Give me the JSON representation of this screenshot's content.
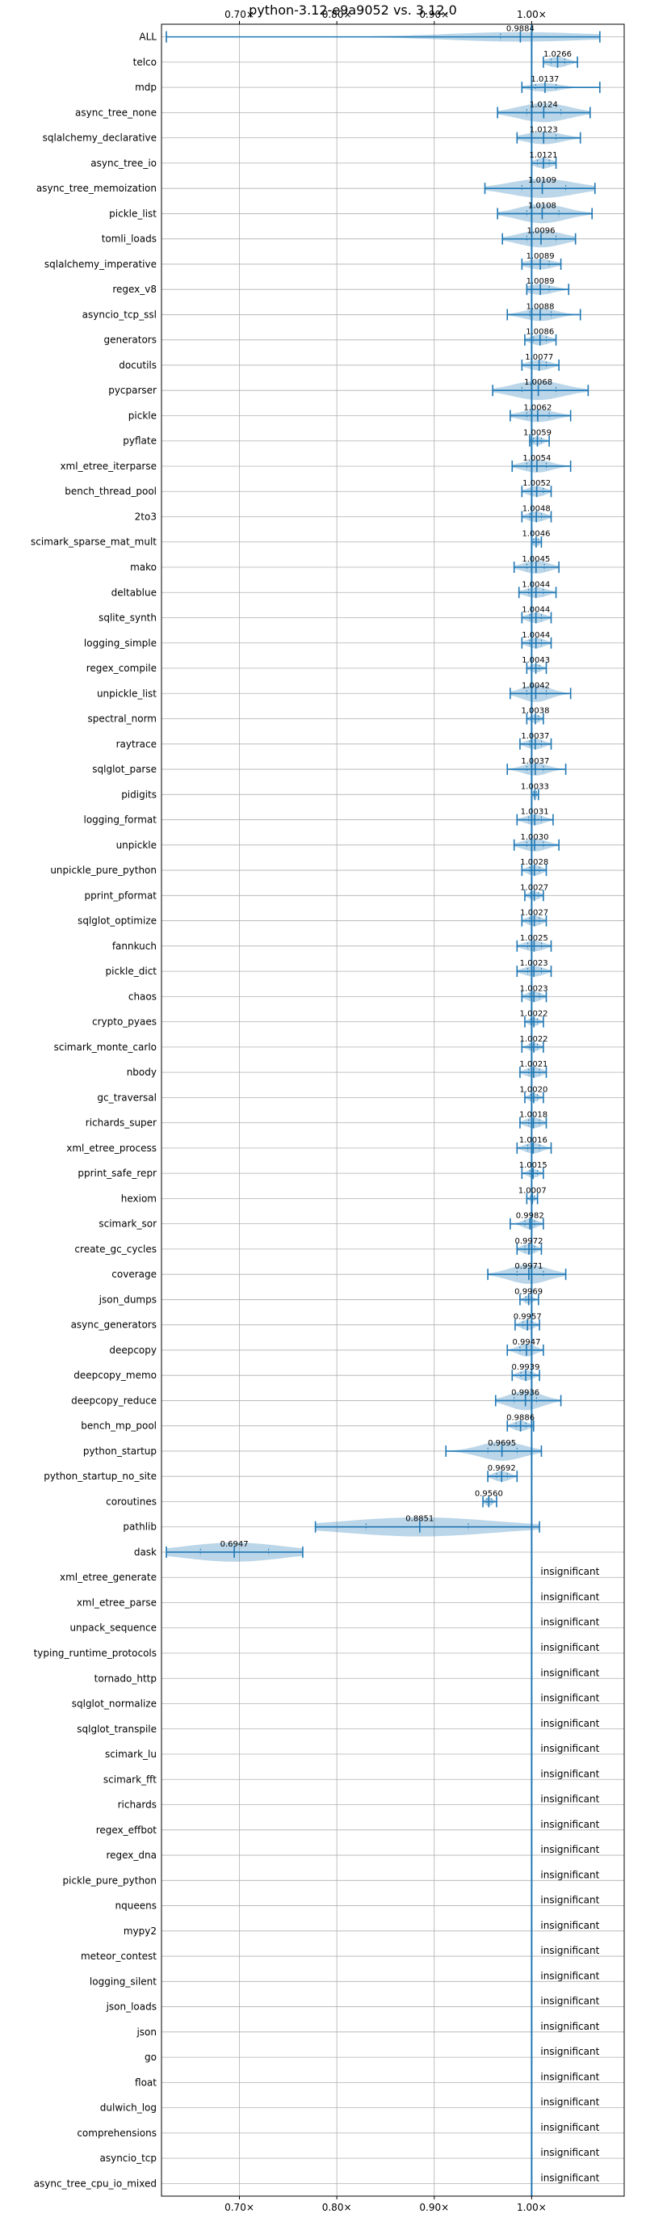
{
  "chart_data": {
    "type": "violin",
    "title": "python-3.12-e9a9052 vs. 3.12.0",
    "xlim": [
      0.62,
      1.095
    ],
    "x_ticks": [
      {
        "value": 0.7,
        "label": "0.70×"
      },
      {
        "value": 0.8,
        "label": "0.80×"
      },
      {
        "value": 0.9,
        "label": "0.90×"
      },
      {
        "value": 1.0,
        "label": "1.00×"
      }
    ],
    "grid": true,
    "reference_line": 1.0,
    "insignificant_label": "insignificant",
    "colors": {
      "line": "#1f77b4",
      "violin": "#1f77b4",
      "grid": "#b0b0b0"
    },
    "rows": [
      {
        "name": "ALL",
        "mean": 0.9884,
        "min": 0.625,
        "max": 1.07,
        "q1": 0.968,
        "q3": 1.0,
        "width": 0.45,
        "label": "0.9884"
      },
      {
        "name": "telco",
        "mean": 1.0266,
        "min": 1.012,
        "max": 1.047,
        "q1": 1.02,
        "q3": 1.034,
        "width": 0.5,
        "label": "1.0266"
      },
      {
        "name": "mdp",
        "mean": 1.0137,
        "min": 0.99,
        "max": 1.07,
        "q1": 1.004,
        "q3": 1.025,
        "width": 0.4,
        "label": "1.0137"
      },
      {
        "name": "async_tree_none",
        "mean": 1.0124,
        "min": 0.965,
        "max": 1.06,
        "q1": 0.995,
        "q3": 1.03,
        "width": 0.9,
        "label": "1.0124"
      },
      {
        "name": "sqlalchemy_declarative",
        "mean": 1.0123,
        "min": 0.985,
        "max": 1.05,
        "q1": 1.0,
        "q3": 1.025,
        "width": 0.6,
        "label": "1.0123"
      },
      {
        "name": "async_tree_io",
        "mean": 1.0121,
        "min": 1.0,
        "max": 1.025,
        "q1": 1.006,
        "q3": 1.018,
        "width": 0.5,
        "label": "1.0121"
      },
      {
        "name": "async_tree_memoization",
        "mean": 1.0109,
        "min": 0.952,
        "max": 1.065,
        "q1": 0.99,
        "q3": 1.035,
        "width": 0.9,
        "label": "1.0109"
      },
      {
        "name": "pickle_list",
        "mean": 1.0108,
        "min": 0.965,
        "max": 1.062,
        "q1": 0.995,
        "q3": 1.028,
        "width": 0.9,
        "label": "1.0108"
      },
      {
        "name": "tomli_loads",
        "mean": 1.0096,
        "min": 0.97,
        "max": 1.045,
        "q1": 0.995,
        "q3": 1.025,
        "width": 0.8,
        "label": "1.0096"
      },
      {
        "name": "sqlalchemy_imperative",
        "mean": 1.0089,
        "min": 0.99,
        "max": 1.03,
        "q1": 1.0,
        "q3": 1.018,
        "width": 0.5,
        "label": "1.0089"
      },
      {
        "name": "regex_v8",
        "mean": 1.0089,
        "min": 0.995,
        "max": 1.038,
        "q1": 1.0,
        "q3": 1.018,
        "width": 0.5,
        "label": "1.0089"
      },
      {
        "name": "asyncio_tcp_ssl",
        "mean": 1.0088,
        "min": 0.975,
        "max": 1.05,
        "q1": 0.998,
        "q3": 1.02,
        "width": 0.6,
        "label": "1.0088"
      },
      {
        "name": "generators",
        "mean": 1.0086,
        "min": 0.993,
        "max": 1.025,
        "q1": 1.002,
        "q3": 1.015,
        "width": 0.5,
        "label": "1.0086"
      },
      {
        "name": "docutils",
        "mean": 1.0077,
        "min": 0.99,
        "max": 1.028,
        "q1": 1.0,
        "q3": 1.015,
        "width": 0.5,
        "label": "1.0077"
      },
      {
        "name": "pycparser",
        "mean": 1.0068,
        "min": 0.96,
        "max": 1.058,
        "q1": 0.99,
        "q3": 1.025,
        "width": 0.9,
        "label": "1.0068"
      },
      {
        "name": "pickle",
        "mean": 1.0062,
        "min": 0.978,
        "max": 1.04,
        "q1": 0.995,
        "q3": 1.018,
        "width": 0.6,
        "label": "1.0062"
      },
      {
        "name": "pyflate",
        "mean": 1.0059,
        "min": 0.998,
        "max": 1.018,
        "q1": 1.002,
        "q3": 1.01,
        "width": 0.4,
        "label": "1.0059"
      },
      {
        "name": "xml_etree_iterparse",
        "mean": 1.0054,
        "min": 0.98,
        "max": 1.04,
        "q1": 0.995,
        "q3": 1.015,
        "width": 0.6,
        "label": "1.0054"
      },
      {
        "name": "bench_thread_pool",
        "mean": 1.0052,
        "min": 0.99,
        "max": 1.02,
        "q1": 1.0,
        "q3": 1.012,
        "width": 0.5,
        "label": "1.0052"
      },
      {
        "name": "2to3",
        "mean": 1.0048,
        "min": 0.99,
        "max": 1.02,
        "q1": 0.998,
        "q3": 1.01,
        "width": 0.5,
        "label": "1.0048"
      },
      {
        "name": "scimark_sparse_mat_mult",
        "mean": 1.0046,
        "min": 1.0,
        "max": 1.01,
        "q1": 1.002,
        "q3": 1.007,
        "width": 0.4,
        "label": "1.0046"
      },
      {
        "name": "mako",
        "mean": 1.0045,
        "min": 0.982,
        "max": 1.028,
        "q1": 0.995,
        "q3": 1.013,
        "width": 0.6,
        "label": "1.0045"
      },
      {
        "name": "deltablue",
        "mean": 1.0044,
        "min": 0.987,
        "max": 1.025,
        "q1": 0.997,
        "q3": 1.012,
        "width": 0.5,
        "label": "1.0044"
      },
      {
        "name": "sqlite_synth",
        "mean": 1.0044,
        "min": 0.99,
        "max": 1.02,
        "q1": 0.998,
        "q3": 1.01,
        "width": 0.5,
        "label": "1.0044"
      },
      {
        "name": "logging_simple",
        "mean": 1.0044,
        "min": 0.99,
        "max": 1.02,
        "q1": 0.998,
        "q3": 1.01,
        "width": 0.5,
        "label": "1.0044"
      },
      {
        "name": "regex_compile",
        "mean": 1.0043,
        "min": 0.995,
        "max": 1.015,
        "q1": 1.0,
        "q3": 1.008,
        "width": 0.4,
        "label": "1.0043"
      },
      {
        "name": "unpickle_list",
        "mean": 1.0042,
        "min": 0.978,
        "max": 1.04,
        "q1": 0.995,
        "q3": 1.015,
        "width": 0.8,
        "label": "1.0042"
      },
      {
        "name": "spectral_norm",
        "mean": 1.0038,
        "min": 0.995,
        "max": 1.012,
        "q1": 1.0,
        "q3": 1.007,
        "width": 0.4,
        "label": "1.0038"
      },
      {
        "name": "raytrace",
        "mean": 1.0037,
        "min": 0.988,
        "max": 1.02,
        "q1": 0.998,
        "q3": 1.01,
        "width": 0.5,
        "label": "1.0037"
      },
      {
        "name": "sqlglot_parse",
        "mean": 1.0037,
        "min": 0.975,
        "max": 1.035,
        "q1": 0.995,
        "q3": 1.012,
        "width": 0.6,
        "label": "1.0037"
      },
      {
        "name": "pidigits",
        "mean": 1.0033,
        "min": 1.0,
        "max": 1.007,
        "q1": 1.002,
        "q3": 1.005,
        "width": 0.3,
        "label": "1.0033"
      },
      {
        "name": "logging_format",
        "mean": 1.0031,
        "min": 0.985,
        "max": 1.022,
        "q1": 0.997,
        "q3": 1.01,
        "width": 0.5,
        "label": "1.0031"
      },
      {
        "name": "unpickle",
        "mean": 1.003,
        "min": 0.982,
        "max": 1.028,
        "q1": 0.995,
        "q3": 1.012,
        "width": 0.6,
        "label": "1.0030"
      },
      {
        "name": "unpickle_pure_python",
        "mean": 1.0028,
        "min": 0.99,
        "max": 1.015,
        "q1": 0.998,
        "q3": 1.008,
        "width": 0.5,
        "label": "1.0028"
      },
      {
        "name": "pprint_pformat",
        "mean": 1.0027,
        "min": 0.993,
        "max": 1.012,
        "q1": 0.999,
        "q3": 1.007,
        "width": 0.4,
        "label": "1.0027"
      },
      {
        "name": "sqlglot_optimize",
        "mean": 1.0027,
        "min": 0.99,
        "max": 1.015,
        "q1": 0.998,
        "q3": 1.008,
        "width": 0.5,
        "label": "1.0027"
      },
      {
        "name": "fannkuch",
        "mean": 1.0025,
        "min": 0.985,
        "max": 1.02,
        "q1": 0.996,
        "q3": 1.01,
        "width": 0.5,
        "label": "1.0025"
      },
      {
        "name": "pickle_dict",
        "mean": 1.0023,
        "min": 0.985,
        "max": 1.02,
        "q1": 0.996,
        "q3": 1.01,
        "width": 0.5,
        "label": "1.0023"
      },
      {
        "name": "chaos",
        "mean": 1.0023,
        "min": 0.99,
        "max": 1.015,
        "q1": 0.998,
        "q3": 1.008,
        "width": 0.5,
        "label": "1.0023"
      },
      {
        "name": "crypto_pyaes",
        "mean": 1.0022,
        "min": 0.993,
        "max": 1.012,
        "q1": 0.999,
        "q3": 1.006,
        "width": 0.4,
        "label": "1.0022"
      },
      {
        "name": "scimark_monte_carlo",
        "mean": 1.0022,
        "min": 0.99,
        "max": 1.012,
        "q1": 0.998,
        "q3": 1.006,
        "width": 0.4,
        "label": "1.0022"
      },
      {
        "name": "nbody",
        "mean": 1.0021,
        "min": 0.988,
        "max": 1.015,
        "q1": 0.997,
        "q3": 1.008,
        "width": 0.5,
        "label": "1.0021"
      },
      {
        "name": "gc_traversal",
        "mean": 1.002,
        "min": 0.993,
        "max": 1.012,
        "q1": 0.999,
        "q3": 1.006,
        "width": 0.4,
        "label": "1.0020"
      },
      {
        "name": "richards_super",
        "mean": 1.0018,
        "min": 0.988,
        "max": 1.015,
        "q1": 0.997,
        "q3": 1.008,
        "width": 0.5,
        "label": "1.0018"
      },
      {
        "name": "xml_etree_process",
        "mean": 1.0016,
        "min": 0.985,
        "max": 1.02,
        "q1": 0.996,
        "q3": 1.008,
        "width": 0.5,
        "label": "1.0016"
      },
      {
        "name": "pprint_safe_repr",
        "mean": 1.0015,
        "min": 0.99,
        "max": 1.012,
        "q1": 0.998,
        "q3": 1.006,
        "width": 0.4,
        "label": "1.0015"
      },
      {
        "name": "hexiom",
        "mean": 1.0007,
        "min": 0.995,
        "max": 1.006,
        "q1": 0.999,
        "q3": 1.003,
        "width": 0.3,
        "label": "1.0007"
      },
      {
        "name": "scimark_sor",
        "mean": 0.9982,
        "min": 0.978,
        "max": 1.012,
        "q1": 0.993,
        "q3": 1.003,
        "width": 0.5,
        "label": "0.9982"
      },
      {
        "name": "create_gc_cycles",
        "mean": 0.9972,
        "min": 0.985,
        "max": 1.01,
        "q1": 0.993,
        "q3": 1.003,
        "width": 0.5,
        "label": "0.9972"
      },
      {
        "name": "coverage",
        "mean": 0.9971,
        "min": 0.955,
        "max": 1.035,
        "q1": 0.985,
        "q3": 1.012,
        "width": 0.9,
        "label": "0.9971"
      },
      {
        "name": "json_dumps",
        "mean": 0.9969,
        "min": 0.988,
        "max": 1.007,
        "q1": 0.994,
        "q3": 1.0,
        "width": 0.4,
        "label": "0.9969"
      },
      {
        "name": "async_generators",
        "mean": 0.9957,
        "min": 0.983,
        "max": 1.008,
        "q1": 0.991,
        "q3": 1.0,
        "width": 0.5,
        "label": "0.9957"
      },
      {
        "name": "deepcopy",
        "mean": 0.9947,
        "min": 0.975,
        "max": 1.012,
        "q1": 0.988,
        "q3": 1.0,
        "width": 0.6,
        "label": "0.9947"
      },
      {
        "name": "deepcopy_memo",
        "mean": 0.9939,
        "min": 0.98,
        "max": 1.008,
        "q1": 0.989,
        "q3": 0.999,
        "width": 0.5,
        "label": "0.9939"
      },
      {
        "name": "deepcopy_reduce",
        "mean": 0.9936,
        "min": 0.963,
        "max": 1.03,
        "q1": 0.982,
        "q3": 1.005,
        "width": 0.9,
        "label": "0.9936"
      },
      {
        "name": "bench_mp_pool",
        "mean": 0.9886,
        "min": 0.975,
        "max": 1.002,
        "q1": 0.984,
        "q3": 0.994,
        "width": 0.5,
        "label": "0.9886"
      },
      {
        "name": "python_startup",
        "mean": 0.9695,
        "min": 0.912,
        "max": 1.01,
        "q1": 0.955,
        "q3": 0.985,
        "width": 0.9,
        "label": "0.9695"
      },
      {
        "name": "python_startup_no_site",
        "mean": 0.9692,
        "min": 0.955,
        "max": 0.985,
        "q1": 0.964,
        "q3": 0.975,
        "width": 0.5,
        "label": "0.9692"
      },
      {
        "name": "coroutines",
        "mean": 0.956,
        "min": 0.95,
        "max": 0.964,
        "q1": 0.954,
        "q3": 0.959,
        "width": 0.4,
        "label": "0.9560"
      },
      {
        "name": "pathlib",
        "mean": 0.8851,
        "min": 0.778,
        "max": 1.008,
        "q1": 0.83,
        "q3": 0.935,
        "width": 0.9,
        "label": "0.8851"
      },
      {
        "name": "dask",
        "mean": 0.6947,
        "min": 0.625,
        "max": 0.765,
        "q1": 0.66,
        "q3": 0.73,
        "width": 0.9,
        "label": "0.6947"
      },
      {
        "name": "xml_etree_generate",
        "insignificant": true
      },
      {
        "name": "xml_etree_parse",
        "insignificant": true
      },
      {
        "name": "unpack_sequence",
        "insignificant": true
      },
      {
        "name": "typing_runtime_protocols",
        "insignificant": true
      },
      {
        "name": "tornado_http",
        "insignificant": true
      },
      {
        "name": "sqlglot_normalize",
        "insignificant": true
      },
      {
        "name": "sqlglot_transpile",
        "insignificant": true
      },
      {
        "name": "scimark_lu",
        "insignificant": true
      },
      {
        "name": "scimark_fft",
        "insignificant": true
      },
      {
        "name": "richards",
        "insignificant": true
      },
      {
        "name": "regex_effbot",
        "insignificant": true
      },
      {
        "name": "regex_dna",
        "insignificant": true
      },
      {
        "name": "pickle_pure_python",
        "insignificant": true
      },
      {
        "name": "nqueens",
        "insignificant": true
      },
      {
        "name": "mypy2",
        "insignificant": true
      },
      {
        "name": "meteor_contest",
        "insignificant": true
      },
      {
        "name": "logging_silent",
        "insignificant": true
      },
      {
        "name": "json_loads",
        "insignificant": true
      },
      {
        "name": "json",
        "insignificant": true
      },
      {
        "name": "go",
        "insignificant": true
      },
      {
        "name": "float",
        "insignificant": true
      },
      {
        "name": "dulwich_log",
        "insignificant": true
      },
      {
        "name": "comprehensions",
        "insignificant": true
      },
      {
        "name": "asyncio_tcp",
        "insignificant": true
      },
      {
        "name": "async_tree_cpu_io_mixed",
        "insignificant": true
      }
    ]
  }
}
